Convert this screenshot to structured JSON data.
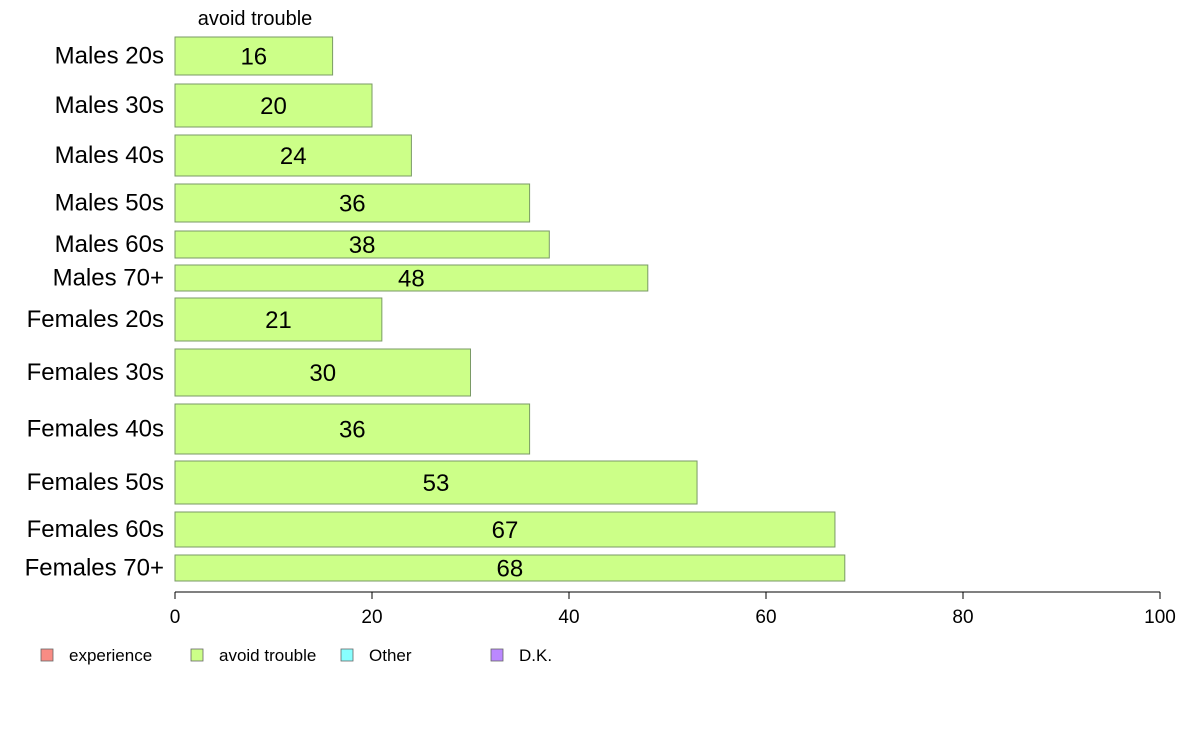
{
  "chart_data": {
    "type": "bar",
    "orientation": "horizontal",
    "title": "avoid trouble",
    "categories": [
      "Males 20s",
      "Males 30s",
      "Males 40s",
      "Males 50s",
      "Males 60s",
      "Males 70+",
      "Females 20s",
      "Females 30s",
      "Females 40s",
      "Females 50s",
      "Females 60s",
      "Females 70+"
    ],
    "series": [
      {
        "name": "avoid trouble",
        "values": [
          16,
          20,
          24,
          36,
          38,
          48,
          21,
          30,
          36,
          53,
          67,
          68
        ],
        "color": "#ccff88"
      }
    ],
    "value_labels": [
      "16",
      "20",
      "24",
      "36",
      "38",
      "48",
      "21",
      "30",
      "36",
      "53",
      "67",
      "68"
    ],
    "xlim": [
      0,
      100
    ],
    "xticks": [
      0,
      20,
      40,
      60,
      80,
      100
    ],
    "xtick_labels": [
      "0",
      "20",
      "40",
      "60",
      "80",
      "100"
    ],
    "grid": false,
    "legend": {
      "placement": "bottom-left",
      "entries": [
        {
          "label": "experience",
          "color": "#f88c84"
        },
        {
          "label": "avoid trouble",
          "color": "#ccff88"
        },
        {
          "label": "Other",
          "color": "#88ffff"
        },
        {
          "label": "D.K.",
          "color": "#bb88ff"
        }
      ]
    }
  }
}
